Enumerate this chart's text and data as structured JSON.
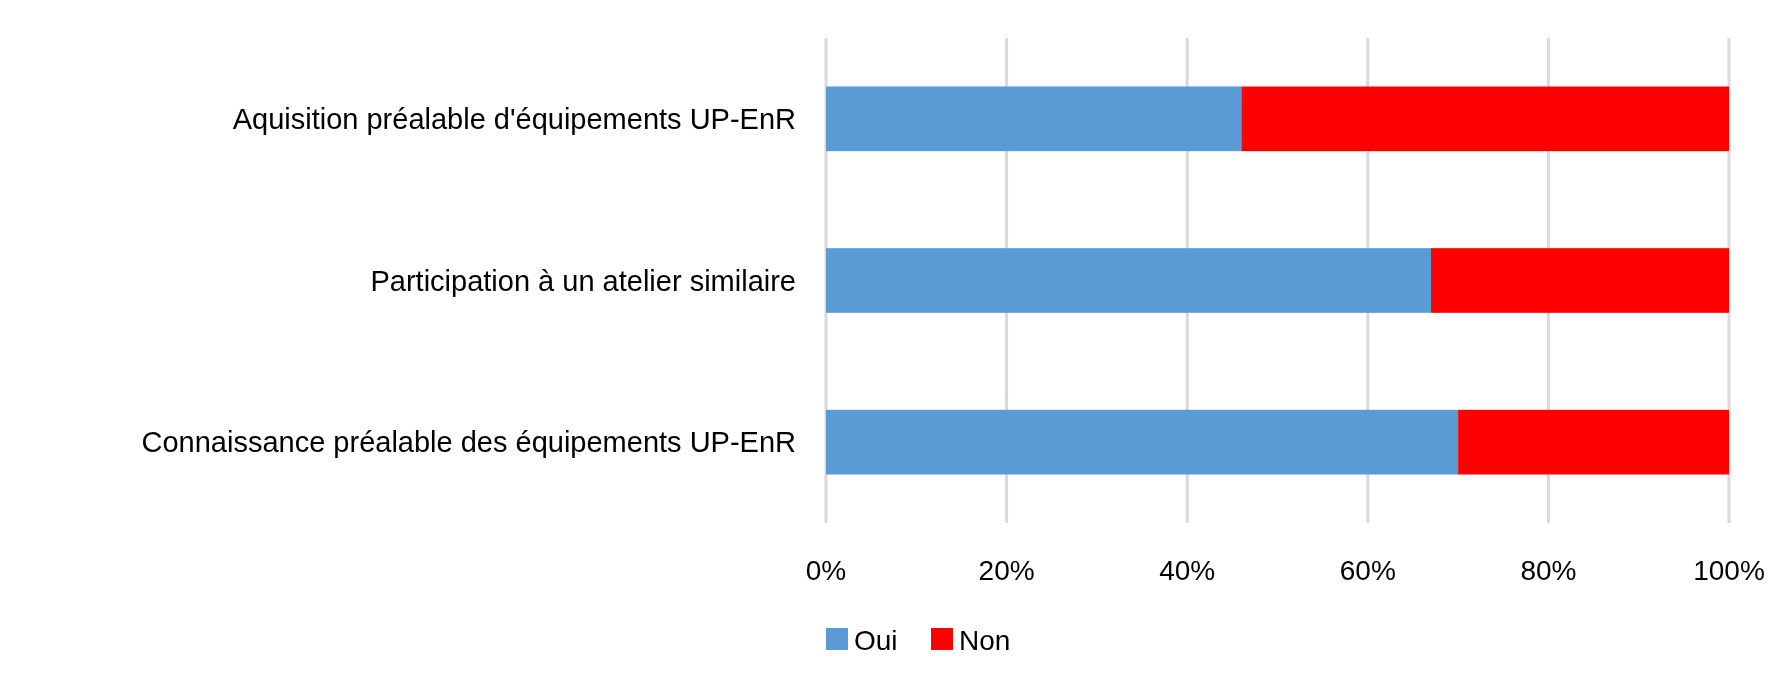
{
  "chart_data": {
    "type": "bar",
    "orientation": "horizontal",
    "stacked": true,
    "categories": [
      "Aquisition préalable d'équipements UP-EnR",
      "Participation à un atelier similaire",
      "Connaissance préalable des équipements UP-EnR"
    ],
    "series": [
      {
        "name": "Oui",
        "color": "#5b9bd5",
        "values": [
          46,
          67,
          70
        ]
      },
      {
        "name": "Non",
        "color": "#ff0000",
        "values": [
          54,
          33,
          30
        ]
      }
    ],
    "xlim": [
      0,
      100
    ],
    "xticks": [
      {
        "value": 0,
        "label": "0%"
      },
      {
        "value": 20,
        "label": "20%"
      },
      {
        "value": 40,
        "label": "40%"
      },
      {
        "value": 60,
        "label": "60%"
      },
      {
        "value": 80,
        "label": "80%"
      },
      {
        "value": 100,
        "label": "100%"
      }
    ],
    "grid": "x",
    "legend": "bottom"
  }
}
